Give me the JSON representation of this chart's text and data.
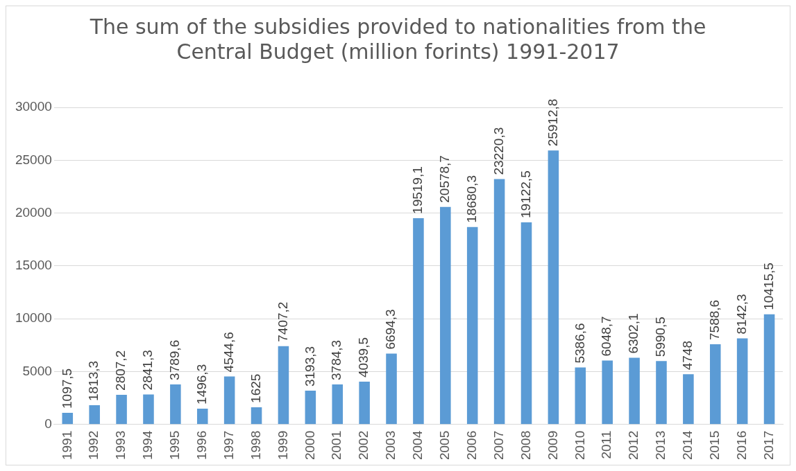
{
  "chart_data": {
    "type": "bar",
    "title": "The sum of the subsidies provided to nationalities from the Central Budget (million forints) 1991-2017",
    "categories": [
      "1991",
      "1992",
      "1993",
      "1994",
      "1995",
      "1996",
      "1997",
      "1998",
      "1999",
      "2000",
      "2001",
      "2002",
      "2003",
      "2004",
      "2005",
      "2006",
      "2007",
      "2008",
      "2009",
      "2010",
      "2011",
      "2012",
      "2013",
      "2014",
      "2015",
      "2016",
      "2017"
    ],
    "values": [
      1097.5,
      1813.3,
      2807.2,
      2841.3,
      3789.6,
      1496.3,
      4544.6,
      1625,
      7407.2,
      3193.3,
      3784.3,
      4039.5,
      6694.3,
      19519.1,
      20578.7,
      18680.3,
      23220.3,
      19122.5,
      25912.8,
      5386.6,
      6048.7,
      6302.1,
      5990.5,
      4748,
      7588.6,
      8142.3,
      10415.5
    ],
    "value_labels": [
      "1097,5",
      "1813,3",
      "2807,2",
      "2841,3",
      "3789,6",
      "1496,3",
      "4544,6",
      "1625",
      "7407,2",
      "3193,3",
      "3784,3",
      "4039,5",
      "6694,3",
      "19519,1",
      "20578,7",
      "18680,3",
      "23220,3",
      "19122,5",
      "25912,8",
      "5386,6",
      "6048,7",
      "6302,1",
      "5990,5",
      "4748",
      "7588,6",
      "8142,3",
      "10415,5"
    ],
    "color": "#5b9bd5",
    "ylim": [
      0,
      30000
    ],
    "yticks": [
      0,
      5000,
      10000,
      15000,
      20000,
      25000,
      30000
    ],
    "grid": "y",
    "legend": false
  }
}
